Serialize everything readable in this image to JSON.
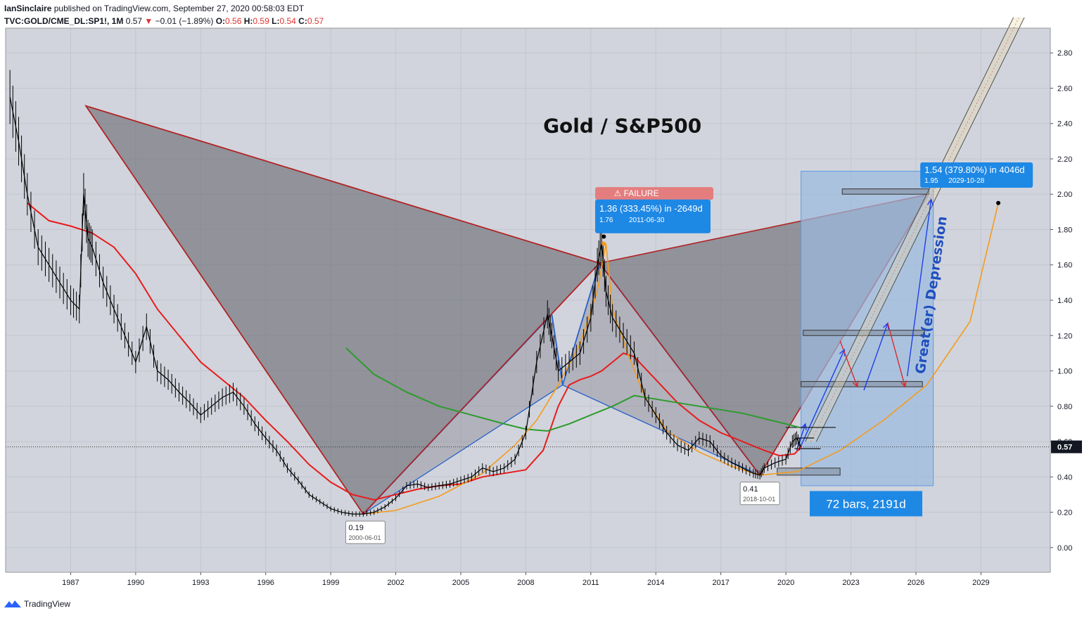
{
  "header": {
    "author": "IanSinclaire",
    "published_text": "published on TradingView.com, September 27, 2020 00:58:03 EDT",
    "symbol": "TVC:GOLD/CME_DL:SP1!, 1M",
    "last": "0.57",
    "change": "−0.01 (−1.89%)",
    "o_label": "O:",
    "o": "0.56",
    "h_label": "H:",
    "h": "0.59",
    "l_label": "L:",
    "l": "0.54",
    "c_label": "C:",
    "c": "0.57"
  },
  "footer": {
    "brand": "TradingView"
  },
  "chart_data": {
    "type": "line",
    "title": "Gold / S&P500",
    "xlabel": "",
    "ylabel": "",
    "x_ticks": [
      "1987",
      "1990",
      "1993",
      "1996",
      "1999",
      "2002",
      "2005",
      "2008",
      "2011",
      "2014",
      "2017",
      "2020",
      "2023",
      "2026",
      "2029"
    ],
    "y_ticks": [
      "0.00",
      "0.20",
      "0.40",
      "0.60",
      "0.80",
      "1.00",
      "1.20",
      "1.40",
      "1.60",
      "1.80",
      "2.00",
      "2.20",
      "2.40",
      "2.60",
      "2.80"
    ],
    "xlim": [
      1984.0,
      2032.2
    ],
    "ylim": [
      -0.14,
      2.94
    ],
    "current_price_label": "0.57",
    "series": [
      {
        "kind": "price",
        "color": "#000000",
        "x": [
          1984.2,
          1984.6,
          1985.0,
          1985.5,
          1986.0,
          1986.5,
          1987.0,
          1987.4,
          1987.6,
          1987.8,
          1988.0,
          1988.5,
          1989.0,
          1989.5,
          1990.0,
          1990.5,
          1991.0,
          1991.5,
          1992.0,
          1992.5,
          1993.0,
          1993.5,
          1994.0,
          1994.5,
          1995.0,
          1995.5,
          1996.0,
          1996.5,
          1997.0,
          1997.5,
          1998.0,
          1998.5,
          1999.0,
          1999.5,
          2000.0,
          2000.5,
          2001.0,
          2001.5,
          2002.0,
          2002.5,
          2003.0,
          2003.5,
          2004.0,
          2004.5,
          2005.0,
          2005.5,
          2006.0,
          2006.5,
          2007.0,
          2007.5,
          2008.0,
          2008.5,
          2009.0,
          2009.2,
          2009.5,
          2010.0,
          2010.5,
          2011.0,
          2011.3,
          2011.5,
          2011.7,
          2012.0,
          2012.5,
          2013.0,
          2013.5,
          2014.0,
          2014.5,
          2015.0,
          2015.5,
          2016.0,
          2016.5,
          2017.0,
          2017.5,
          2018.0,
          2018.5,
          2018.8,
          2019.0,
          2019.5,
          2020.0,
          2020.3,
          2020.5,
          2020.7
        ],
        "y": [
          2.55,
          2.3,
          2.0,
          1.7,
          1.6,
          1.5,
          1.4,
          1.35,
          2.0,
          1.75,
          1.7,
          1.5,
          1.35,
          1.2,
          1.05,
          1.25,
          1.0,
          0.95,
          0.88,
          0.82,
          0.75,
          0.8,
          0.85,
          0.88,
          0.8,
          0.7,
          0.62,
          0.55,
          0.45,
          0.38,
          0.3,
          0.26,
          0.22,
          0.2,
          0.19,
          0.19,
          0.2,
          0.23,
          0.28,
          0.35,
          0.36,
          0.34,
          0.35,
          0.36,
          0.38,
          0.4,
          0.45,
          0.43,
          0.45,
          0.5,
          0.65,
          1.05,
          1.32,
          1.2,
          1.0,
          1.05,
          1.1,
          1.3,
          1.6,
          1.72,
          1.45,
          1.3,
          1.2,
          1.1,
          0.85,
          0.75,
          0.65,
          0.58,
          0.55,
          0.62,
          0.6,
          0.52,
          0.48,
          0.45,
          0.42,
          0.41,
          0.45,
          0.48,
          0.5,
          0.6,
          0.62,
          0.57
        ]
      },
      {
        "kind": "ma_red",
        "color": "#e81c1c",
        "x": [
          1985.0,
          1986.0,
          1987.0,
          1988.0,
          1989.0,
          1990.0,
          1991.0,
          1992.0,
          1993.0,
          1994.0,
          1995.0,
          1996.0,
          1997.0,
          1998.0,
          1999.0,
          2000.0,
          2001.0,
          2002.0,
          2003.0,
          2004.0,
          2005.0,
          2006.0,
          2007.0,
          2008.0,
          2008.8,
          2009.5,
          2010.0,
          2010.5,
          2011.0,
          2011.5,
          2012.0,
          2012.5,
          2013.0,
          2014.0,
          2015.0,
          2016.0,
          2017.0,
          2018.0,
          2019.0,
          2019.7,
          2020.4,
          2020.7
        ],
        "y": [
          1.95,
          1.85,
          1.82,
          1.78,
          1.7,
          1.55,
          1.35,
          1.2,
          1.05,
          0.95,
          0.85,
          0.72,
          0.6,
          0.47,
          0.37,
          0.3,
          0.27,
          0.3,
          0.33,
          0.35,
          0.36,
          0.4,
          0.42,
          0.44,
          0.55,
          0.8,
          0.92,
          0.95,
          0.97,
          1.0,
          1.05,
          1.1,
          1.08,
          0.95,
          0.82,
          0.72,
          0.65,
          0.6,
          0.55,
          0.52,
          0.53,
          0.57
        ]
      },
      {
        "kind": "ma_green",
        "color": "#2e9b2e",
        "x": [
          1999.7,
          2001.0,
          2002.5,
          2004.0,
          2005.5,
          2007.0,
          2008.0,
          2009.0,
          2010.0,
          2011.0,
          2012.0,
          2013.0,
          2014.0,
          2015.0,
          2016.0,
          2017.0,
          2018.0,
          2019.0,
          2020.0,
          2020.6
        ],
        "y": [
          1.13,
          0.98,
          0.88,
          0.8,
          0.75,
          0.7,
          0.67,
          0.66,
          0.7,
          0.75,
          0.8,
          0.86,
          0.84,
          0.82,
          0.8,
          0.78,
          0.76,
          0.73,
          0.7,
          0.68
        ]
      },
      {
        "kind": "arc_orange",
        "color": "#f49b1c",
        "x": [
          2000.5,
          2002.0,
          2004.0,
          2006.0,
          2007.5,
          2008.5,
          2009.5,
          2010.5,
          2011.3,
          2011.7,
          2012.0,
          2012.7,
          2013.5,
          2014.5,
          2016.0,
          2017.5,
          2018.8,
          2020.5,
          2022.5,
          2024.5,
          2026.5,
          2028.5,
          2029.8
        ],
        "y": [
          0.19,
          0.21,
          0.29,
          0.42,
          0.58,
          0.72,
          0.92,
          1.15,
          1.45,
          1.72,
          1.35,
          1.1,
          0.85,
          0.66,
          0.54,
          0.46,
          0.41,
          0.43,
          0.55,
          0.72,
          0.92,
          1.28,
          1.95
        ]
      }
    ],
    "annotations": {
      "failure_label": "⚠ FAILURE",
      "top_box_line1": "1.36 (333.45%) in -2649d",
      "top_box_line2": "1.76",
      "top_box_date": "2011-06-30",
      "right_box_line1": "1.54 (379.80%) in 4046d",
      "right_box_line2": "1.95",
      "right_box_date": "2029-10-28",
      "low1_value": "0.19",
      "low1_date": "2000-06-01",
      "low2_value": "0.41",
      "low2_date": "2018-10-01",
      "range_label": "72 bars, 2191d",
      "depression_text": "Great(er) Depression"
    },
    "pattern_points": {
      "X": [
        1987.7,
        2.5
      ],
      "A": [
        2000.5,
        0.19
      ],
      "B": [
        2011.4,
        1.61
      ],
      "C": [
        2018.8,
        0.41
      ],
      "D": [
        2026.6,
        2.0
      ],
      "inner_low": [
        2009.2,
        1.32
      ],
      "inner_mid": [
        2009.7,
        0.92
      ]
    },
    "colors": {
      "pattern_fill": "#6e6e76",
      "pattern_line": "#b22222",
      "blue_line": "#2962c6",
      "range_fill": "#9bbbe0",
      "label_blue": "#1e88e5",
      "failure_red": "#e57373",
      "arrow_blue": "#1f3fe6",
      "arrow_red": "#d62d2d",
      "background": "#d1d4dc"
    }
  }
}
